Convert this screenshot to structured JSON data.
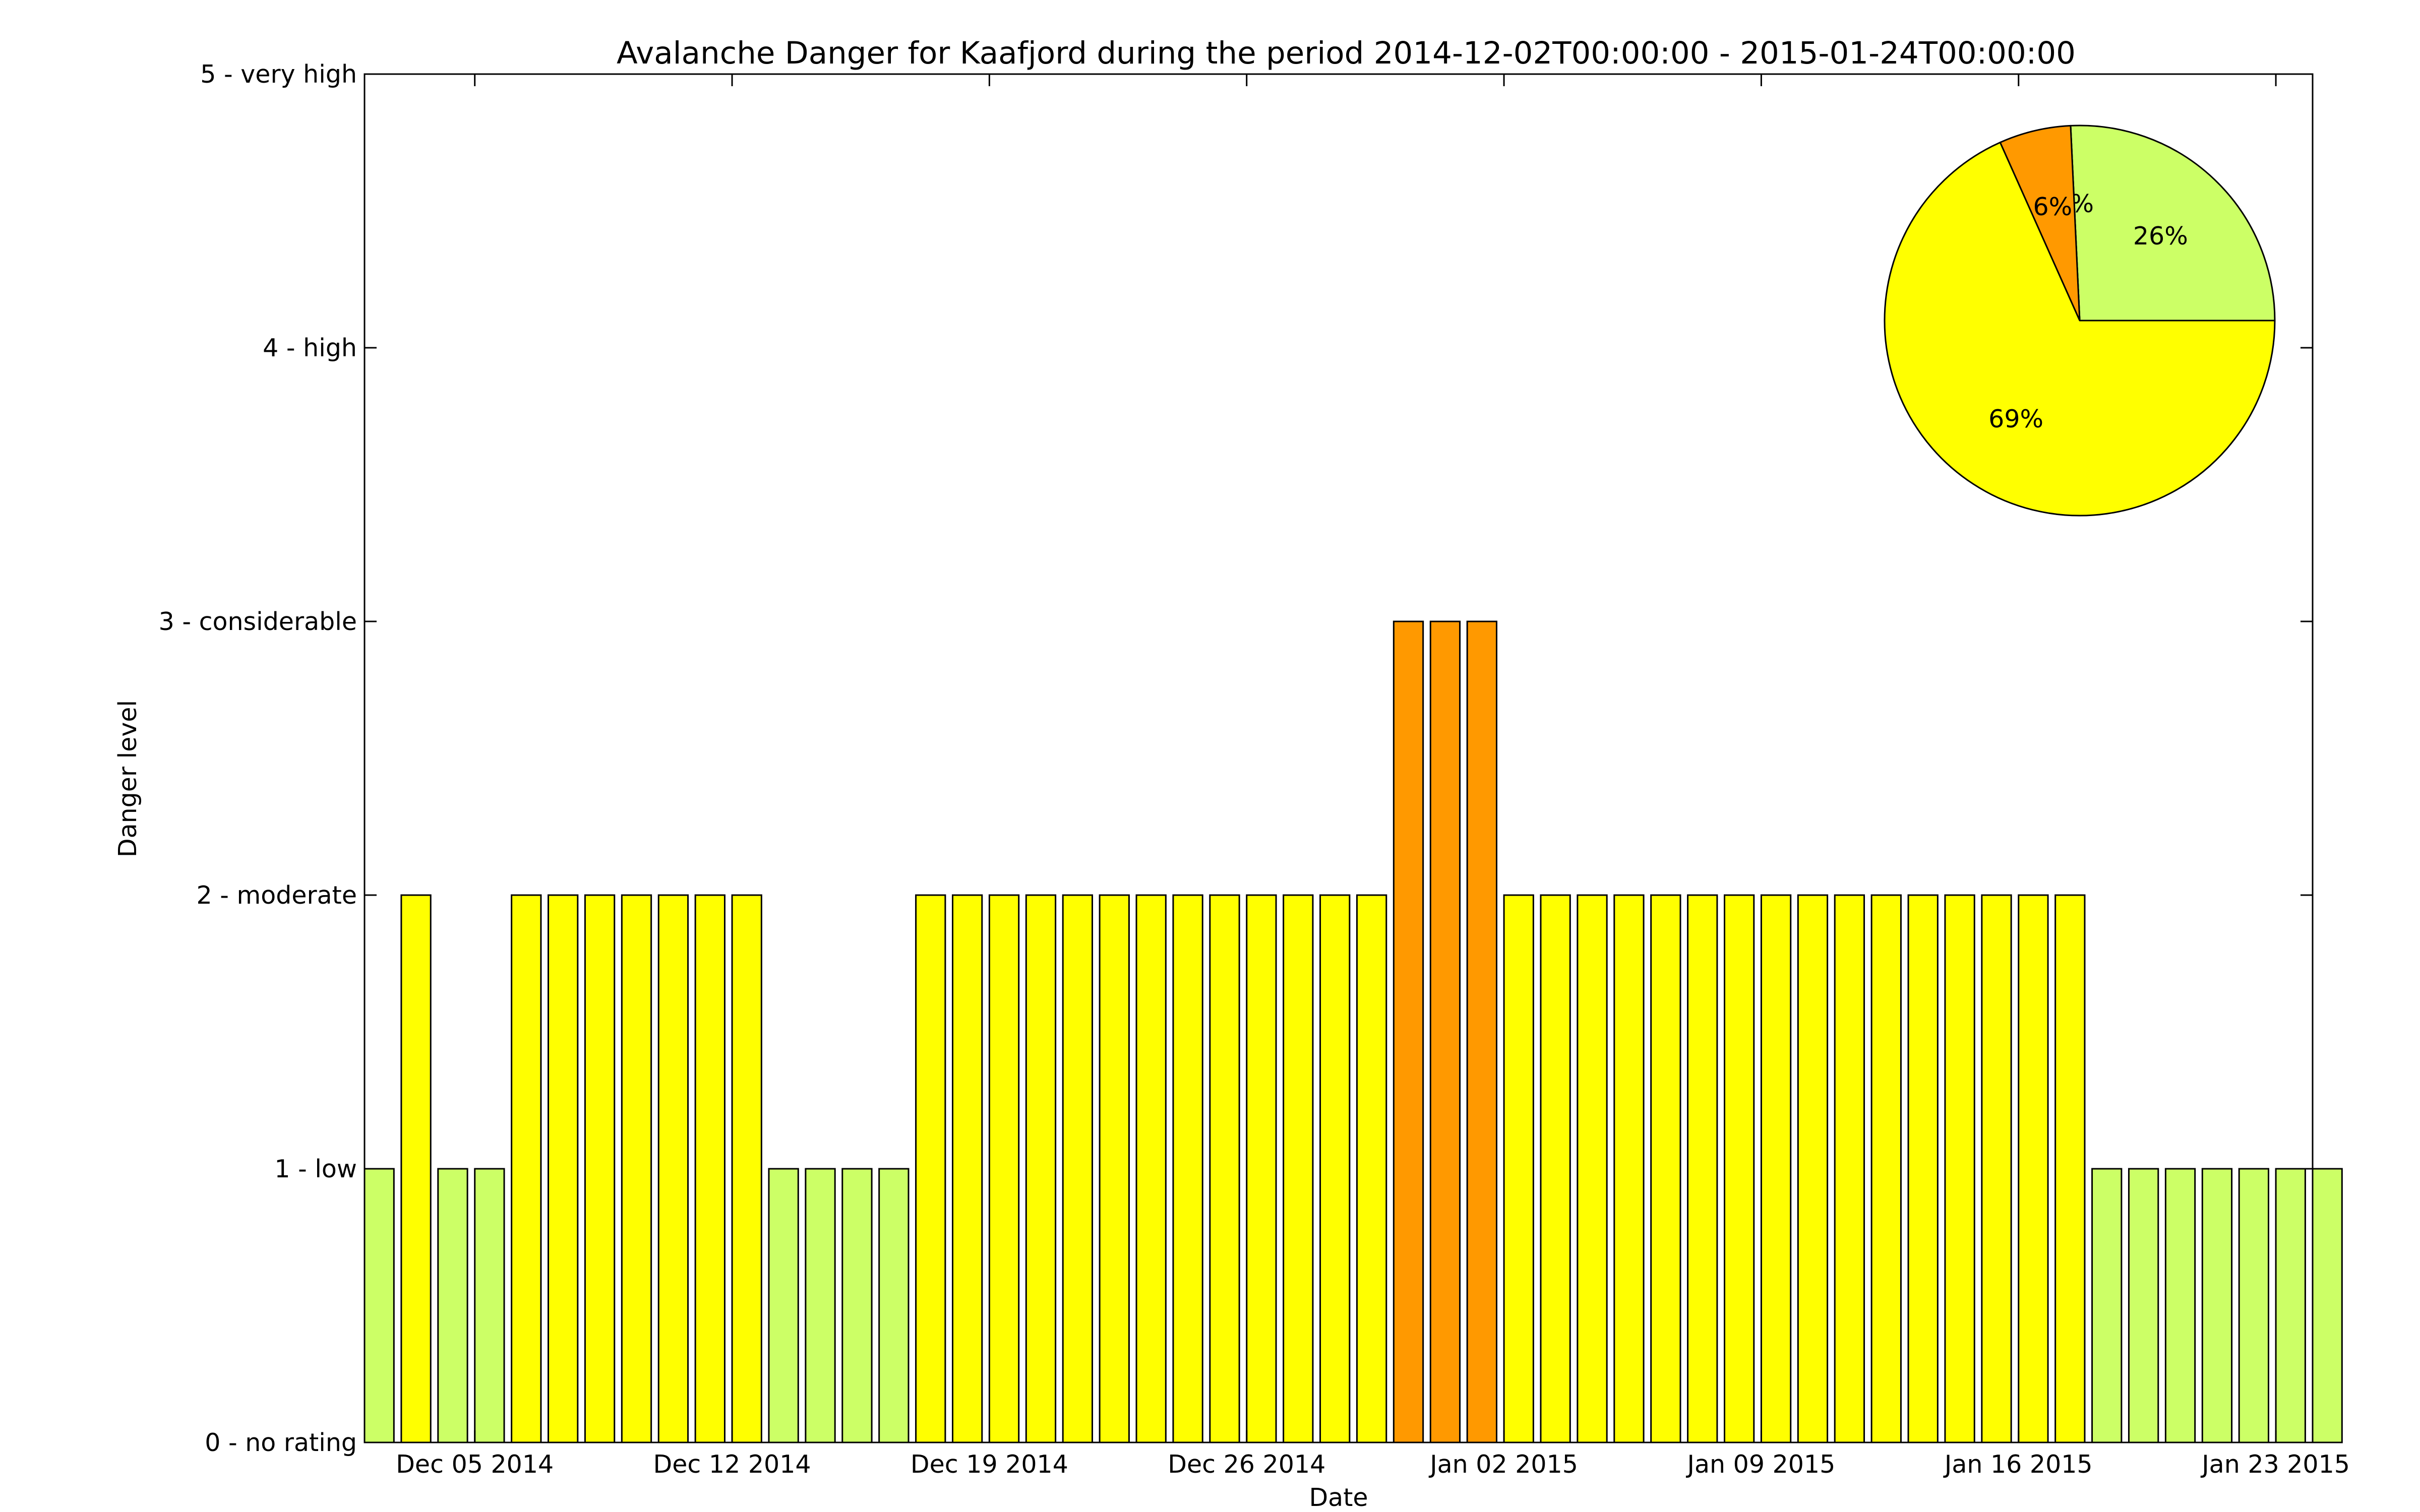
{
  "chart_data": [
    {
      "type": "bar",
      "title": "Avalanche Danger for Kaafjord during the period 2014-12-02T00:00:00 - 2015-01-24T00:00:00",
      "xlabel": "Date",
      "ylabel": "Danger level",
      "ylim": [
        0,
        5
      ],
      "yticks": [
        {
          "value": 0,
          "label": "0 - no rating"
        },
        {
          "value": 1,
          "label": "1 - low"
        },
        {
          "value": 2,
          "label": "2 - moderate"
        },
        {
          "value": 3,
          "label": "3 - considerable"
        },
        {
          "value": 4,
          "label": "4 - high"
        },
        {
          "value": 5,
          "label": "5 - very high"
        }
      ],
      "xlim": [
        "2014-12-02",
        "2015-01-24"
      ],
      "xticks": [
        {
          "date": "2014-12-05",
          "label": "Dec 05 2014"
        },
        {
          "date": "2014-12-12",
          "label": "Dec 12 2014"
        },
        {
          "date": "2014-12-19",
          "label": "Dec 19 2014"
        },
        {
          "date": "2014-12-26",
          "label": "Dec 26 2014"
        },
        {
          "date": "2015-01-02",
          "label": "Jan 02 2015"
        },
        {
          "date": "2015-01-09",
          "label": "Jan 09 2015"
        },
        {
          "date": "2015-01-16",
          "label": "Jan 16 2015"
        },
        {
          "date": "2015-01-23",
          "label": "Jan 23 2015"
        }
      ],
      "colors": {
        "1": "#ccff66",
        "2": "#ffff00",
        "3": "#ff9900"
      },
      "grid": false,
      "dates": [
        "2014-12-02",
        "2014-12-03",
        "2014-12-04",
        "2014-12-05",
        "2014-12-06",
        "2014-12-07",
        "2014-12-08",
        "2014-12-09",
        "2014-12-10",
        "2014-12-11",
        "2014-12-12",
        "2014-12-13",
        "2014-12-14",
        "2014-12-15",
        "2014-12-16",
        "2014-12-17",
        "2014-12-18",
        "2014-12-19",
        "2014-12-20",
        "2014-12-21",
        "2014-12-22",
        "2014-12-23",
        "2014-12-24",
        "2014-12-25",
        "2014-12-26",
        "2014-12-27",
        "2014-12-28",
        "2014-12-29",
        "2014-12-30",
        "2014-12-31",
        "2015-01-01",
        "2015-01-02",
        "2015-01-03",
        "2015-01-04",
        "2015-01-05",
        "2015-01-06",
        "2015-01-07",
        "2015-01-08",
        "2015-01-09",
        "2015-01-10",
        "2015-01-11",
        "2015-01-12",
        "2015-01-13",
        "2015-01-14",
        "2015-01-15",
        "2015-01-16",
        "2015-01-17",
        "2015-01-18",
        "2015-01-19",
        "2015-01-20",
        "2015-01-21",
        "2015-01-22",
        "2015-01-23",
        "2015-01-24"
      ],
      "values": [
        1,
        2,
        1,
        1,
        2,
        2,
        2,
        2,
        2,
        2,
        2,
        1,
        1,
        1,
        1,
        2,
        2,
        2,
        2,
        2,
        2,
        2,
        2,
        2,
        2,
        2,
        2,
        2,
        3,
        3,
        3,
        2,
        2,
        2,
        2,
        2,
        2,
        2,
        2,
        2,
        2,
        2,
        2,
        2,
        2,
        2,
        2,
        1,
        1,
        1,
        1,
        1,
        1,
        1
      ]
    },
    {
      "type": "pie",
      "labels": [
        "26%",
        "0%",
        "6%",
        "69%"
      ],
      "values": [
        26,
        0,
        6,
        69
      ],
      "colors": [
        "#ccff66",
        "#ff0000",
        "#ff9900",
        "#ffff00"
      ],
      "legend": "top-right"
    }
  ]
}
